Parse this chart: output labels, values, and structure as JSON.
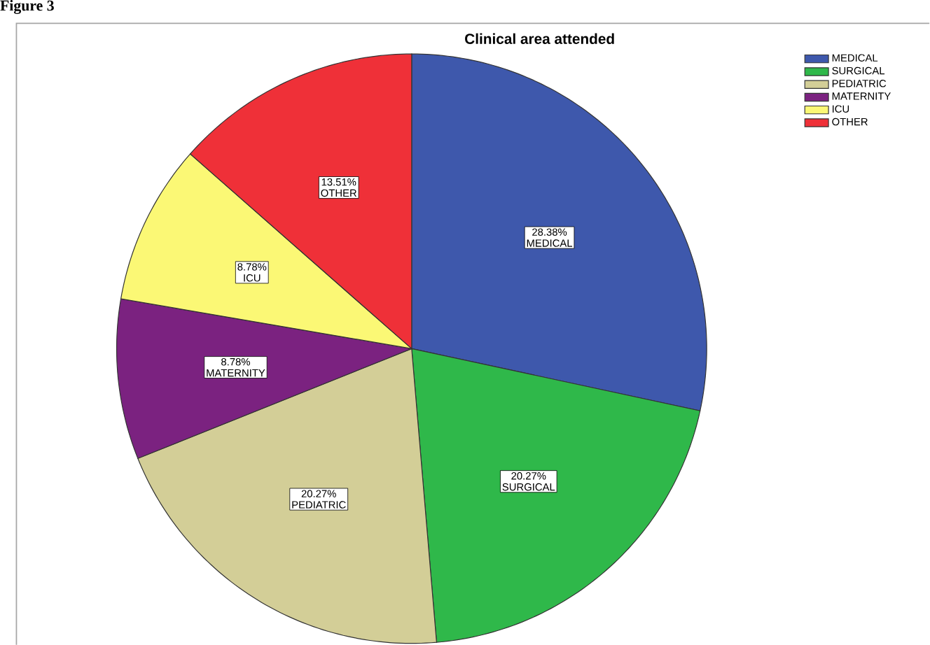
{
  "chart_data": {
    "type": "pie",
    "title": "Clinical area attended",
    "categories": [
      "MEDICAL",
      "SURGICAL",
      "PEDIATRIC",
      "MATERNITY",
      "ICU",
      "OTHER"
    ],
    "values": [
      28.38,
      20.27,
      20.27,
      8.78,
      8.78,
      13.51
    ],
    "value_labels": [
      "28.38%",
      "20.27%",
      "20.27%",
      "8.78%",
      "8.78%",
      "13.51%"
    ],
    "colors": [
      "#3e58ac",
      "#2fb84a",
      "#d3ce97",
      "#7b2280",
      "#fbf875",
      "#ef3038"
    ],
    "legend": "top right",
    "annotations": [
      "Figure 3"
    ]
  }
}
